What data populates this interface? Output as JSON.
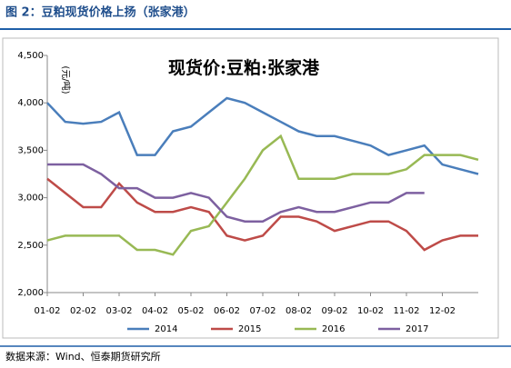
{
  "header": {
    "title": "图 2：豆粕现货价格上扬（张家港）"
  },
  "chart_data": {
    "type": "line",
    "title": "现货价:豆粕:张家港",
    "y_label": "(元/吨)",
    "categories": [
      "01-02",
      null,
      "02-02",
      null,
      "03-02",
      null,
      "04-02",
      null,
      "05-02",
      null,
      "06-02",
      null,
      "07-02",
      null,
      "08-02",
      null,
      "09-02",
      null,
      "10-02",
      null,
      "11-02",
      null,
      "12-02",
      null,
      null
    ],
    "series": [
      {
        "name": "2014",
        "color": "#4a7ebb",
        "values": [
          4000,
          3800,
          3780,
          3800,
          3900,
          3450,
          3450,
          3700,
          3750,
          3900,
          4050,
          4000,
          3900,
          3800,
          3700,
          3650,
          3650,
          3600,
          3550,
          3450,
          3500,
          3550,
          3350,
          3300,
          3250
        ]
      },
      {
        "name": "2015",
        "color": "#be4b48",
        "values": [
          3200,
          3050,
          2900,
          2900,
          3150,
          2950,
          2850,
          2850,
          2900,
          2850,
          2600,
          2550,
          2600,
          2800,
          2800,
          2750,
          2650,
          2700,
          2750,
          2750,
          2650,
          2450,
          2550,
          2600,
          2600
        ]
      },
      {
        "name": "2016",
        "color": "#98b954",
        "values": [
          2550,
          2600,
          2600,
          2600,
          2600,
          2450,
          2450,
          2400,
          2650,
          2700,
          2950,
          3200,
          3500,
          3650,
          3200,
          3200,
          3200,
          3250,
          3250,
          3250,
          3300,
          3450,
          3450,
          3450,
          3400
        ]
      },
      {
        "name": "2017",
        "color": "#7d60a0",
        "values": [
          3350,
          3350,
          3350,
          3250,
          3100,
          3100,
          3000,
          3000,
          3050,
          3000,
          2800,
          2750,
          2750,
          2850,
          2900,
          2850,
          2850,
          2900,
          2950,
          2950,
          3050,
          3050,
          null,
          null,
          null
        ]
      }
    ],
    "ylim": [
      2000,
      4500
    ],
    "yticks": [
      {
        "value": 2000,
        "label": "2,000"
      },
      {
        "value": 2500,
        "label": "2,500"
      },
      {
        "value": 3000,
        "label": "3,000"
      },
      {
        "value": 3500,
        "label": "3,500"
      },
      {
        "value": 4000,
        "label": "4,000"
      },
      {
        "value": 4500,
        "label": "4,500"
      }
    ],
    "legend": "bottom"
  },
  "footer": {
    "source": "数据来源：Wind、恒泰期货研究所"
  }
}
